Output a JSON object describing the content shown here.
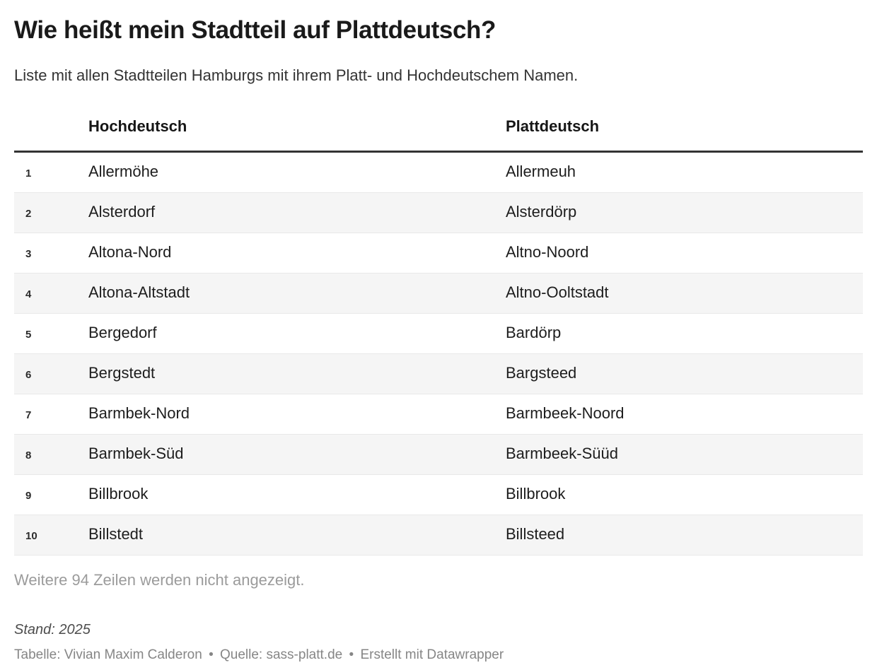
{
  "chart_data": {
    "type": "table",
    "title": "Wie heißt mein Stadtteil auf Plattdeutsch?",
    "subtitle": "Liste mit allen Stadtteilen Hamburgs mit ihrem Platt- und Hochdeutschem Namen.",
    "columns": [
      "Hochdeutsch",
      "Plattdeutsch"
    ],
    "rows": [
      {
        "num": "1",
        "hochdeutsch": "Allermöhe",
        "plattdeutsch": "Allermeuh"
      },
      {
        "num": "2",
        "hochdeutsch": "Alsterdorf",
        "plattdeutsch": "Alsterdörp"
      },
      {
        "num": "3",
        "hochdeutsch": "Altona-Nord",
        "plattdeutsch": "Altno-Noord"
      },
      {
        "num": "4",
        "hochdeutsch": "Altona-Altstadt",
        "plattdeutsch": "Altno-Ooltstadt"
      },
      {
        "num": "5",
        "hochdeutsch": "Bergedorf",
        "plattdeutsch": "Bardörp"
      },
      {
        "num": "6",
        "hochdeutsch": "Bergstedt",
        "plattdeutsch": "Bargsteed"
      },
      {
        "num": "7",
        "hochdeutsch": "Barmbek-Nord",
        "plattdeutsch": "Barmbeek-Noord"
      },
      {
        "num": "8",
        "hochdeutsch": "Barmbek-Süd",
        "plattdeutsch": "Barmbeek-Süüd"
      },
      {
        "num": "9",
        "hochdeutsch": "Billbrook",
        "plattdeutsch": "Billbrook"
      },
      {
        "num": "10",
        "hochdeutsch": "Billstedt",
        "plattdeutsch": "Billsteed"
      }
    ],
    "truncation_note": "Weitere 94 Zeilen werden nicht angezeigt.",
    "layout_hints": {
      "striped_rows": "even",
      "visible_rows": 10,
      "hidden_rows": 94,
      "header_rule": "thick-dark",
      "grid": "horizontal-dividers-only"
    }
  },
  "footer": {
    "stand_note": "Stand: 2025",
    "table_credit": "Tabelle: Vivian Maxim Calderon",
    "separator": "•",
    "source_label": "Quelle:",
    "source_link_text": "sass-platt.de",
    "created_with_label": "Erstellt mit",
    "created_with_link_text": "Datawrapper"
  },
  "colors": {
    "title_text": "#1a1a1a",
    "body_text": "#1d1d1d",
    "header_rule": "#333333",
    "row_stripe": "#f5f5f5",
    "row_divider": "#e9e9e9",
    "muted_text": "#9b9b9b",
    "footer_text": "#868686"
  }
}
